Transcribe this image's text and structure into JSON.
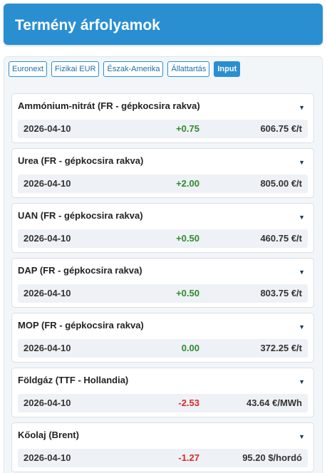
{
  "header": {
    "title": "Termény árfolyamok"
  },
  "tabs": [
    {
      "label": "Euronext",
      "active": false
    },
    {
      "label": "Fizikai EUR",
      "active": false
    },
    {
      "label": "Észak-Amerika",
      "active": false
    },
    {
      "label": "Állattartás",
      "active": false
    },
    {
      "label": "Input",
      "active": true
    }
  ],
  "colors": {
    "accent": "#2a8fd1",
    "positive": "#2e8b2e",
    "negative": "#d62a2a"
  },
  "cards": [
    {
      "title": "Ammónium-nitrát (FR - gépkocsira rakva)",
      "date": "2026-04-10",
      "change": "+0.75",
      "direction": "up",
      "price": "606.75 €/t"
    },
    {
      "title": "Urea (FR - gépkocsira rakva)",
      "date": "2026-04-10",
      "change": "+2.00",
      "direction": "up",
      "price": "805.00 €/t"
    },
    {
      "title": "UAN (FR - gépkocsira rakva)",
      "date": "2026-04-10",
      "change": "+0.50",
      "direction": "up",
      "price": "460.75 €/t"
    },
    {
      "title": "DAP (FR - gépkocsira rakva)",
      "date": "2026-04-10",
      "change": "+0.50",
      "direction": "up",
      "price": "803.75 €/t"
    },
    {
      "title": "MOP (FR - gépkocsira rakva)",
      "date": "2026-04-10",
      "change": "0.00",
      "direction": "flat",
      "price": "372.25 €/t"
    },
    {
      "title": "Földgáz (TTF - Hollandia)",
      "date": "2026-04-10",
      "change": "-2.53",
      "direction": "down",
      "price": "43.64 €/MWh"
    },
    {
      "title": "Kőolaj (Brent)",
      "date": "2026-04-10",
      "change": "-1.27",
      "direction": "down",
      "price": "95.20 $/hordó"
    }
  ],
  "icons": {
    "expand": "chevron-down-icon"
  }
}
